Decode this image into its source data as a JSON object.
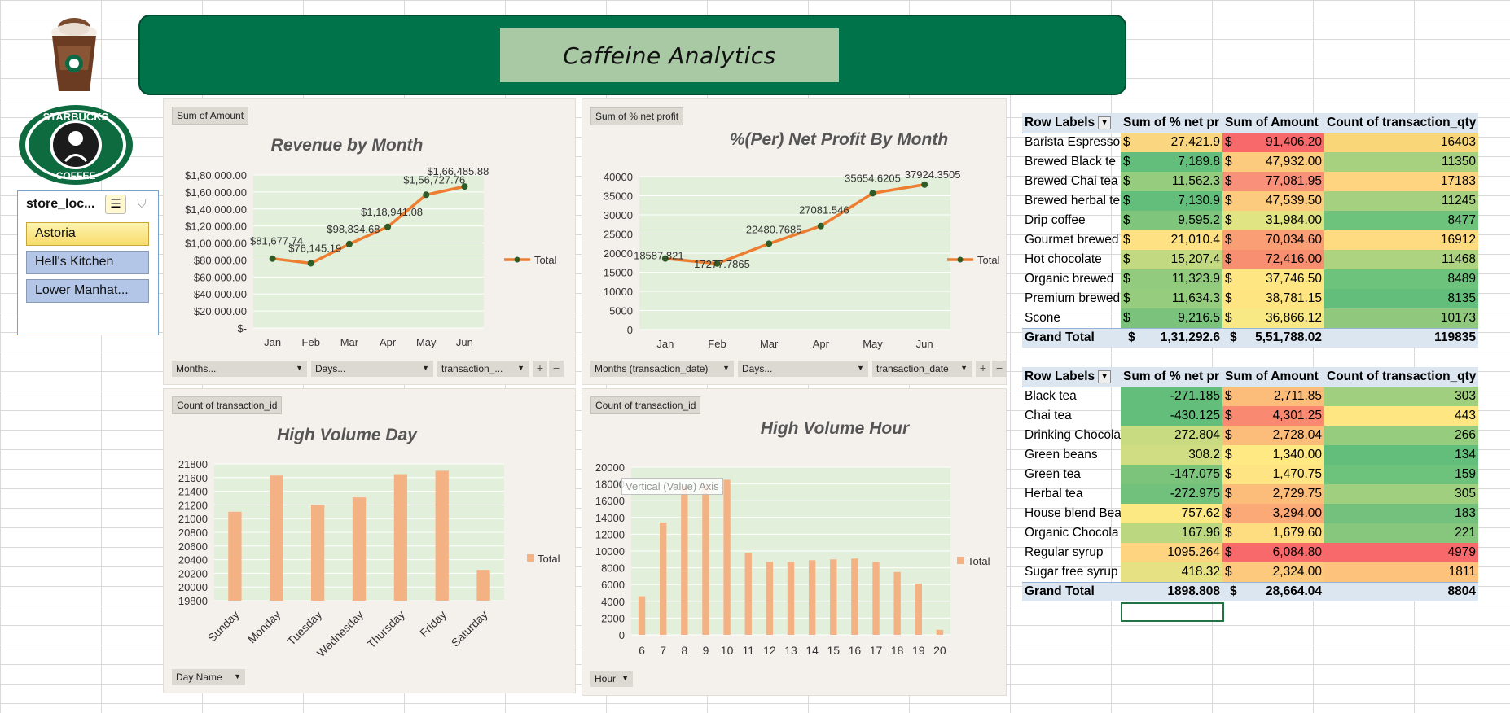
{
  "banner": {
    "title": "Caffeine  Analytics"
  },
  "slicer": {
    "title": "store_loc...",
    "items": [
      {
        "label": "Astoria",
        "selected": true
      },
      {
        "label": "Hell's Kitchen",
        "selected": false
      },
      {
        "label": "Lower Manhat...",
        "selected": false
      }
    ],
    "multiselect_icon": "multiselect-icon",
    "clear_filter_icon": "clear-filter-icon"
  },
  "colors": {
    "banner": "#01734a",
    "line": "#ed7d31",
    "bar": "#f4b183",
    "plot_bg": "#e2efda",
    "header": "#dce6f1"
  },
  "charts": {
    "revenue": {
      "field": "Sum of Amount",
      "filters": [
        "Months...",
        "Days...",
        "transaction_..."
      ],
      "legend": "Total"
    },
    "profit": {
      "field": "Sum of % net profit",
      "filters": [
        "Months (transaction_date)",
        "Days...",
        "transaction_date"
      ],
      "legend": "Total"
    },
    "day": {
      "field": "Count of transaction_id",
      "filters": [
        "Day Name"
      ],
      "legend": "Total"
    },
    "hour": {
      "field": "Count of transaction_id",
      "filters": [
        "Hour"
      ],
      "legend": "Total",
      "tooltip": "Vertical (Value) Axis"
    }
  },
  "chart_data": [
    {
      "type": "line",
      "title": "Revenue by Month",
      "categories": [
        "Jan",
        "Feb",
        "Mar",
        "Apr",
        "May",
        "Jun"
      ],
      "series": [
        {
          "name": "Total",
          "values": [
            81677.74,
            76145.19,
            98834.68,
            118941.08,
            156727.76,
            166485.88
          ]
        }
      ],
      "data_labels": [
        "$81,677.74",
        "$76,145.19",
        "$98,834.68",
        "$1,18,941.08",
        "$1,56,727.76",
        "$1,66,485.88"
      ],
      "ylim": [
        0,
        180000
      ],
      "yticks": [
        "$-",
        "$20,000.00",
        "$40,000.00",
        "$60,000.00",
        "$80,000.00",
        "$1,00,000.00",
        "$1,20,000.00",
        "$1,40,000.00",
        "$1,60,000.00",
        "$1,80,000.00"
      ],
      "legend_position": "right",
      "grid": true
    },
    {
      "type": "line",
      "title": "%(Per) Net Profit By Month",
      "categories": [
        "Jan",
        "Feb",
        "Mar",
        "Apr",
        "May",
        "Jun"
      ],
      "series": [
        {
          "name": "Total",
          "values": [
            18587.821,
            17277.7865,
            22480.7685,
            27081.546,
            35654.6205,
            37924.3505
          ]
        }
      ],
      "data_labels": [
        "18587.821",
        "17277.7865",
        "22480.7685",
        "27081.546",
        "35654.6205",
        "37924.3505"
      ],
      "ylim": [
        0,
        40000
      ],
      "yticks": [
        "0",
        "5000",
        "10000",
        "15000",
        "20000",
        "25000",
        "30000",
        "35000",
        "40000"
      ],
      "legend_position": "right",
      "grid": true
    },
    {
      "type": "bar",
      "title": "High Volume Day",
      "categories": [
        "Sunday",
        "Monday",
        "Tuesday",
        "Wednesday",
        "Thursday",
        "Friday",
        "Saturday"
      ],
      "series": [
        {
          "name": "Total",
          "values": [
            21100,
            21630,
            21200,
            21310,
            21650,
            21700,
            20250
          ]
        }
      ],
      "ylim": [
        19800,
        21800
      ],
      "yticks": [
        "19800",
        "20000",
        "20200",
        "20400",
        "20600",
        "20800",
        "21000",
        "21200",
        "21400",
        "21600",
        "21800"
      ],
      "legend_position": "right",
      "grid": true
    },
    {
      "type": "bar",
      "title": "High Volume Hour",
      "categories": [
        "6",
        "7",
        "8",
        "9",
        "10",
        "11",
        "12",
        "13",
        "14",
        "15",
        "16",
        "17",
        "18",
        "19",
        "20"
      ],
      "series": [
        {
          "name": "Total",
          "values": [
            4600,
            13400,
            17700,
            17800,
            18500,
            9800,
            8700,
            8700,
            8900,
            9000,
            9100,
            8700,
            7500,
            6100,
            600
          ]
        }
      ],
      "ylim": [
        0,
        20000
      ],
      "yticks": [
        "0",
        "2000",
        "4000",
        "6000",
        "8000",
        "10000",
        "12000",
        "14000",
        "16000",
        "18000",
        "20000"
      ],
      "legend_position": "right",
      "grid": true
    }
  ],
  "pivot1": {
    "headers": [
      "Row Labels",
      "Sum of % net pr",
      "Sum of Amount",
      "Count of transaction_qty"
    ],
    "rows": [
      {
        "label": "Barista Espresso",
        "profit": "27,421.9",
        "amount": "91,406.20",
        "qty": "16403",
        "pc": "#f9d67f",
        "ac": "#f8696b",
        "qc": "#f9d779"
      },
      {
        "label": "Brewed Black te",
        "profit": "7,189.8",
        "amount": "47,932.00",
        "qty": "11350",
        "pc": "#63be7b",
        "ac": "#fdcb7d",
        "qc": "#a7d17f"
      },
      {
        "label": "Brewed Chai tea",
        "profit": "11,562.3",
        "amount": "77,081.95",
        "qty": "17183",
        "pc": "#96cc7e",
        "ac": "#f9907a",
        "qc": "#fed480"
      },
      {
        "label": "Brewed herbal te",
        "profit": "7,130.9",
        "amount": "47,539.50",
        "qty": "11245",
        "pc": "#63be7b",
        "ac": "#fdcb7d",
        "qc": "#a5d07f"
      },
      {
        "label": "Drip coffee",
        "profit": "9,595.2",
        "amount": "31,984.00",
        "qty": "8477",
        "pc": "#80c57c",
        "ac": "#e0e483",
        "qc": "#6dc27c"
      },
      {
        "label": "Gourmet brewed",
        "profit": "21,010.4",
        "amount": "70,034.60",
        "qty": "16912",
        "pc": "#fee182",
        "ac": "#fa9e76",
        "qc": "#feda81"
      },
      {
        "label": "Hot chocolate",
        "profit": "15,207.4",
        "amount": "72,416.00",
        "qty": "11468",
        "pc": "#c3d981",
        "ac": "#f98f71",
        "qc": "#add280"
      },
      {
        "label": "Organic brewed",
        "profit": "11,323.9",
        "amount": "37,746.50",
        "qty": "8489",
        "pc": "#92ca7e",
        "ac": "#fee782",
        "qc": "#6dc27c"
      },
      {
        "label": "Premium brewed",
        "profit": "11,634.3",
        "amount": "38,781.15",
        "qty": "8135",
        "pc": "#96cc7e",
        "ac": "#fee582",
        "qc": "#63be7b"
      },
      {
        "label": "Scone",
        "profit": "9,216.5",
        "amount": "36,866.12",
        "qty": "10173",
        "pc": "#7bc37c",
        "ac": "#f8e984",
        "qc": "#90c97e"
      }
    ],
    "total": {
      "label": "Grand Total",
      "profit": "1,31,292.6",
      "amount": "5,51,788.02",
      "qty": "119835"
    },
    "dollar": "$"
  },
  "pivot2": {
    "headers": [
      "Row Labels",
      "Sum of % net pr",
      "Sum of Amount",
      "Count of transaction_qty"
    ],
    "rows": [
      {
        "label": "Black tea",
        "profit": "-271.185",
        "amount": "2,711.85",
        "qty": "303",
        "pc": "#63be7b",
        "ac": "#fcbd7b",
        "qc": "#a0cf7f"
      },
      {
        "label": "Chai tea",
        "profit": "-430.125",
        "amount": "4,301.25",
        "qty": "443",
        "pc": "#63be7b",
        "ac": "#f98a71",
        "qc": "#fee783"
      },
      {
        "label": "Drinking Chocola",
        "profit": "272.804",
        "amount": "2,728.04",
        "qty": "266",
        "pc": "#c8db81",
        "ac": "#fcbd7b",
        "qc": "#96cc7e"
      },
      {
        "label": "Green beans",
        "profit": "308.2",
        "amount": "1,340.00",
        "qty": "134",
        "pc": "#d1dd82",
        "ac": "#fee983",
        "qc": "#63be7b"
      },
      {
        "label": "Green tea",
        "profit": "-147.075",
        "amount": "1,470.75",
        "qty": "159",
        "pc": "#7cc47c",
        "ac": "#fee483",
        "qc": "#6dc27c"
      },
      {
        "label": "Herbal tea",
        "profit": "-272.975",
        "amount": "2,729.75",
        "qty": "305",
        "pc": "#71c07c",
        "ac": "#fcbd7b",
        "qc": "#a0cf7f"
      },
      {
        "label": "House blend Bea",
        "profit": "757.62",
        "amount": "3,294.00",
        "qty": "183",
        "pc": "#fde983",
        "ac": "#fba976",
        "qc": "#73c17c"
      },
      {
        "label": "Organic Chocola",
        "profit": "167.96",
        "amount": "1,679.60",
        "qty": "221",
        "pc": "#bbd780",
        "ac": "#fedd81",
        "qc": "#86c77d"
      },
      {
        "label": "Regular syrup",
        "profit": "1095.264",
        "amount": "6,084.80",
        "qty": "4979",
        "pc": "#fed480",
        "ac": "#f8696b",
        "qc": "#f8696b"
      },
      {
        "label": "Sugar free syrup",
        "profit": "418.32",
        "amount": "2,324.00",
        "qty": "1811",
        "pc": "#e6e283",
        "ac": "#fdca7d",
        "qc": "#fdc37d"
      }
    ],
    "total": {
      "label": "Grand Total",
      "profit": "1898.808",
      "amount": "28,664.04",
      "qty": "8804"
    },
    "dollar": "$"
  }
}
